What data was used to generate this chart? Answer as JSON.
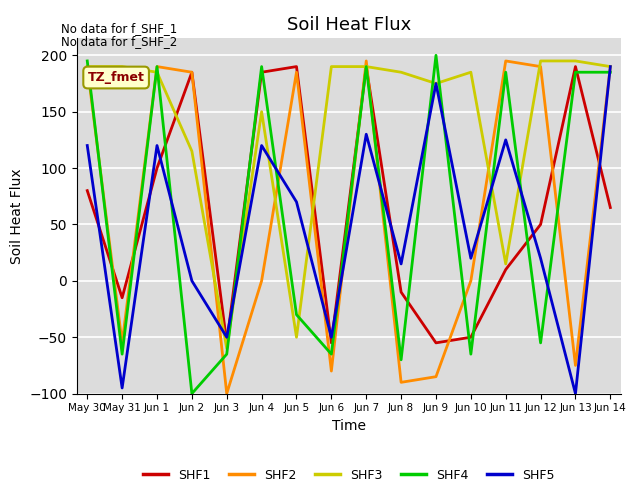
{
  "title": "Soil Heat Flux",
  "xlabel": "Time",
  "ylabel": "Soil Heat Flux",
  "ylim": [
    -100,
    215
  ],
  "yticks": [
    -100,
    -50,
    0,
    50,
    100,
    150,
    200
  ],
  "annotations": [
    "No data for f_SHF_1",
    "No data for f_SHF_2"
  ],
  "box_label": "TZ_fmet",
  "background_color": "#dcdcdc",
  "x_dates": [
    "May 30",
    "May 31",
    "Jun 1",
    "Jun 2",
    "Jun 3",
    "Jun 4",
    "Jun 5",
    "Jun 6",
    "Jun 7",
    "Jun 8",
    "Jun 9",
    "Jun 10",
    "Jun 11",
    "Jun 12",
    "Jun 13",
    "Jun 14"
  ],
  "x_numeric": [
    0,
    1,
    2,
    3,
    4,
    5,
    6,
    7,
    8,
    9,
    10,
    11,
    12,
    13,
    14,
    15
  ],
  "SHF1": {
    "color": "#cc0000",
    "x": [
      0,
      1,
      2,
      3,
      4,
      5,
      6,
      7,
      8,
      9,
      10,
      11,
      12,
      13,
      14,
      15
    ],
    "y": [
      80,
      -15,
      100,
      185,
      -55,
      185,
      190,
      -55,
      190,
      -10,
      -55,
      -50,
      10,
      50,
      190,
      65
    ]
  },
  "SHF2": {
    "color": "#ff8c00",
    "x": [
      0,
      1,
      2,
      3,
      4,
      5,
      6,
      7,
      8,
      9,
      10,
      11,
      12,
      13,
      14,
      15
    ],
    "y": [
      190,
      -55,
      190,
      185,
      -100,
      0,
      185,
      -80,
      195,
      -90,
      -85,
      0,
      195,
      190,
      -75,
      190
    ]
  },
  "SHF3": {
    "color": "#cccc00",
    "x": [
      0,
      1,
      2,
      3,
      4,
      5,
      6,
      7,
      8,
      9,
      10,
      11,
      12,
      13,
      14,
      15
    ],
    "y": [
      190,
      190,
      185,
      115,
      -60,
      150,
      -50,
      190,
      190,
      185,
      175,
      185,
      15,
      195,
      195,
      190
    ]
  },
  "SHF4": {
    "color": "#00cc00",
    "x": [
      0,
      1,
      2,
      3,
      4,
      5,
      6,
      7,
      8,
      9,
      10,
      11,
      12,
      13,
      14,
      15
    ],
    "y": [
      195,
      -65,
      190,
      -100,
      -65,
      190,
      -30,
      -65,
      190,
      -70,
      200,
      -65,
      185,
      -55,
      185,
      185
    ]
  },
  "SHF5": {
    "color": "#0000cc",
    "x": [
      0,
      1,
      2,
      3,
      4,
      5,
      6,
      7,
      8,
      9,
      10,
      11,
      12,
      13,
      14,
      15
    ],
    "y": [
      120,
      -95,
      120,
      0,
      -50,
      120,
      70,
      -50,
      130,
      15,
      175,
      20,
      125,
      20,
      -100,
      190
    ]
  },
  "legend_labels": [
    "SHF1",
    "SHF2",
    "SHF3",
    "SHF4",
    "SHF5"
  ],
  "legend_colors": [
    "#cc0000",
    "#ff8c00",
    "#cccc00",
    "#00cc00",
    "#0000cc"
  ]
}
